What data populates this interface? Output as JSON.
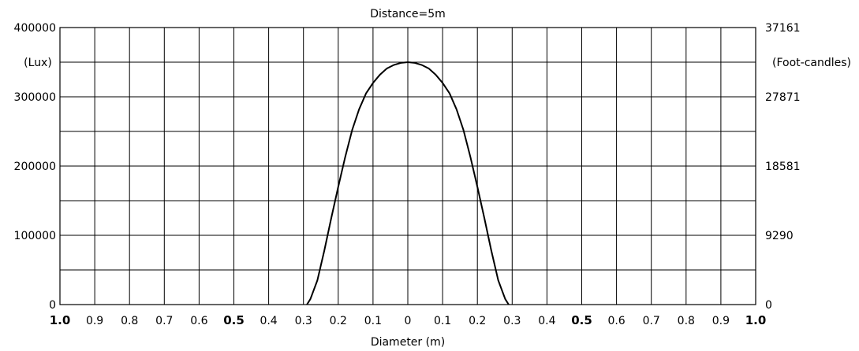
{
  "chart_data": {
    "type": "line",
    "title": "Distance=5m",
    "xlabel": "Diameter (m)",
    "ylabel_left": "(Lux)",
    "ylabel_right": "(Foot-candles)",
    "x_tick_labels": [
      "1.0",
      "0.9",
      "0.8",
      "0.7",
      "0.6",
      "0.5",
      "0.4",
      "0.3",
      "0.2",
      "0.1",
      "0",
      "0.1",
      "0.2",
      "0.3",
      "0.4",
      "0.5",
      "0.6",
      "0.7",
      "0.8",
      "0.9",
      "1.0"
    ],
    "x_tick_bold": [
      true,
      false,
      false,
      false,
      false,
      true,
      false,
      false,
      false,
      false,
      false,
      false,
      false,
      false,
      false,
      true,
      false,
      false,
      false,
      false,
      true
    ],
    "y_tick_labels_left": [
      "0",
      "100000",
      "200000",
      "300000",
      "400000"
    ],
    "y_tick_values_left": [
      0,
      100000,
      200000,
      300000,
      400000
    ],
    "y_tick_labels_right": [
      "0",
      "9290",
      "18581",
      "27871",
      "37161"
    ],
    "ylim": [
      0,
      400000
    ],
    "xlim": [
      -1.0,
      1.0
    ],
    "grid": true,
    "series": [
      {
        "x": [
          -0.29,
          -0.28,
          -0.26,
          -0.24,
          -0.22,
          -0.2,
          -0.18,
          -0.16,
          -0.14,
          -0.12,
          -0.1,
          -0.08,
          -0.06,
          -0.04,
          -0.02,
          0,
          0.02,
          0.04,
          0.06,
          0.08,
          0.1,
          0.12,
          0.14,
          0.16,
          0.18,
          0.2,
          0.22,
          0.24,
          0.26,
          0.28,
          0.29
        ],
        "y": [
          0,
          8000,
          35000,
          78000,
          125000,
          170000,
          213000,
          252000,
          282000,
          305000,
          320000,
          332000,
          341000,
          346000,
          349000,
          350000,
          349000,
          346000,
          341000,
          332000,
          320000,
          305000,
          282000,
          252000,
          213000,
          170000,
          125000,
          78000,
          35000,
          8000,
          0
        ]
      }
    ]
  }
}
